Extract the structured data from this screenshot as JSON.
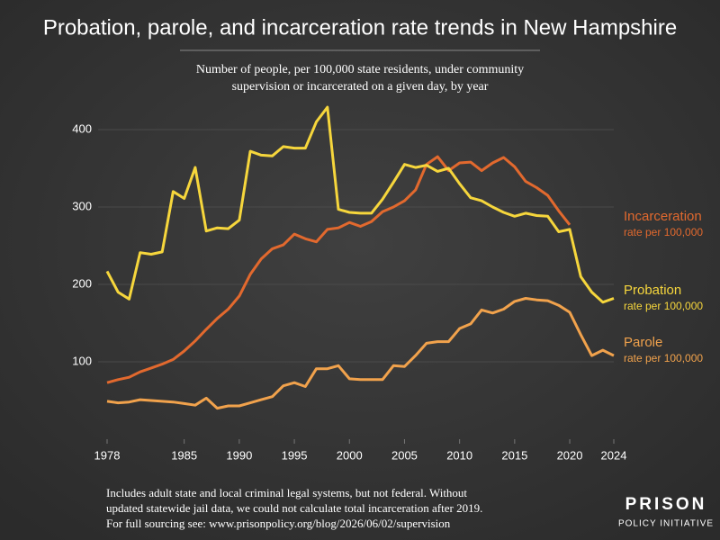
{
  "chart_data": {
    "type": "line",
    "title": "Probation, parole, and incarceration rate trends in New Hampshire",
    "subtitle": [
      "Number of people, per 100,000 state residents, under community",
      "supervision or incarcerated on a given day, by year"
    ],
    "notes": [
      "Includes adult state and local criminal legal systems, but not federal. Without",
      "updated statewide jail data, we could not calculate total incarceration after 2019.",
      "For full sourcing see: www.prisonpolicy.org/blog/2026/06/02/supervision"
    ],
    "logo": [
      "PRISON",
      "POLICY INITIATIVE"
    ],
    "x": [
      1978,
      1979,
      1980,
      1981,
      1982,
      1983,
      1984,
      1985,
      1986,
      1987,
      1988,
      1989,
      1990,
      1991,
      1992,
      1993,
      1994,
      1995,
      1996,
      1997,
      1998,
      1999,
      2000,
      2001,
      2002,
      2003,
      2004,
      2005,
      2006,
      2007,
      2008,
      2009,
      2010,
      2011,
      2012,
      2013,
      2014,
      2015,
      2016,
      2017,
      2018,
      2019,
      2020,
      2021,
      2022,
      2023,
      2024
    ],
    "xlim": [
      1978,
      2024
    ],
    "xticks": [
      1978,
      1985,
      1990,
      1995,
      2000,
      2005,
      2010,
      2015,
      2020,
      2024
    ],
    "ylim": [
      0,
      440
    ],
    "yticks": [
      100,
      200,
      300,
      400
    ],
    "grid": true,
    "series": [
      {
        "name": "Incarceration",
        "sublabel": "rate per 100,000",
        "color": "#e2692e",
        "values": [
          73,
          77,
          80,
          87,
          92,
          97,
          103,
          114,
          127,
          142,
          156,
          168,
          185,
          213,
          233,
          246,
          251,
          265,
          259,
          255,
          271,
          273,
          280,
          275,
          281,
          294,
          300,
          308,
          322,
          355,
          365,
          347,
          357,
          358,
          347,
          357,
          364,
          352,
          333,
          325,
          315,
          295,
          277,
          null,
          null,
          null,
          null
        ]
      },
      {
        "name": "Probation",
        "sublabel": "rate per 100,000",
        "color": "#f6d63c",
        "values": [
          217,
          190,
          181,
          241,
          239,
          242,
          320,
          311,
          351,
          269,
          273,
          272,
          283,
          372,
          367,
          366,
          378,
          376,
          376,
          410,
          429,
          297,
          293,
          292,
          292,
          310,
          332,
          355,
          351,
          354,
          346,
          350,
          330,
          312,
          308,
          300,
          293,
          288,
          292,
          289,
          288,
          268,
          271,
          210,
          190,
          177,
          182
        ]
      },
      {
        "name": "Parole",
        "sublabel": "rate per 100,000",
        "color": "#f1a24c",
        "values": [
          49,
          47,
          48,
          51,
          50,
          49,
          48,
          46,
          44,
          53,
          40,
          43,
          43,
          47,
          51,
          55,
          69,
          73,
          68,
          91,
          91,
          95,
          78,
          77,
          77,
          77,
          95,
          94,
          108,
          124,
          126,
          126,
          143,
          149,
          167,
          163,
          168,
          178,
          182,
          180,
          179,
          173,
          164,
          135,
          108,
          115,
          108
        ]
      }
    ]
  }
}
